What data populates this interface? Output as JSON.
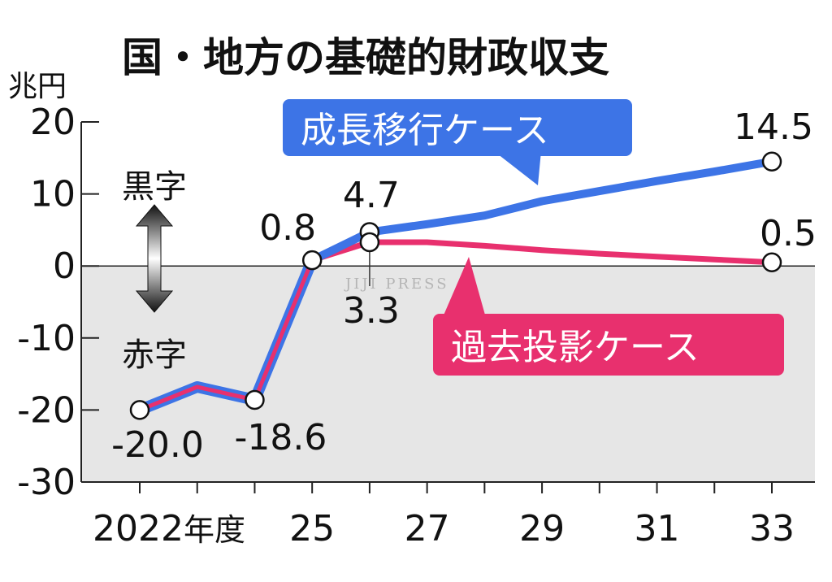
{
  "chart_data": {
    "type": "line",
    "title": "国・地方の基礎的財政収支",
    "ylabel": "兆円",
    "x_values": [
      2022,
      2023,
      2024,
      2025,
      2026,
      2027,
      2028,
      2029,
      2030,
      2031,
      2032,
      2033
    ],
    "x_tick_labels": [
      {
        "x": 2022,
        "label": "2022年度"
      },
      {
        "x": 2025,
        "label": "25"
      },
      {
        "x": 2027,
        "label": "27"
      },
      {
        "x": 2029,
        "label": "29"
      },
      {
        "x": 2031,
        "label": "31"
      },
      {
        "x": 2033,
        "label": "33"
      }
    ],
    "ylim": [
      -30,
      20
    ],
    "y_ticks": [
      20,
      10,
      0,
      -10,
      -20,
      -30
    ],
    "surplus_label": "黒字",
    "deficit_label": "赤字",
    "watermark": "JIJI PRESS",
    "series": [
      {
        "name": "成長移行ケース",
        "color": "#3d74e6",
        "points": [
          [
            2022,
            -20.0
          ],
          [
            2023,
            -16.8
          ],
          [
            2024,
            -18.6
          ],
          [
            2025,
            0.8
          ],
          [
            2026,
            4.7
          ],
          [
            2027,
            5.8
          ],
          [
            2028,
            7.0
          ],
          [
            2029,
            9.0
          ],
          [
            2030,
            10.4
          ],
          [
            2031,
            11.8
          ],
          [
            2032,
            13.1
          ],
          [
            2033,
            14.5
          ]
        ],
        "labels": [
          {
            "x": 2026,
            "text": "4.7"
          },
          {
            "x": 2033,
            "text": "14.5"
          }
        ]
      },
      {
        "name": "過去投影ケース",
        "color": "#e8306e",
        "points": [
          [
            2022,
            -20.0
          ],
          [
            2023,
            -16.8
          ],
          [
            2024,
            -18.6
          ],
          [
            2025,
            0.8
          ],
          [
            2026,
            3.3
          ],
          [
            2027,
            3.3
          ],
          [
            2028,
            2.8
          ],
          [
            2029,
            2.2
          ],
          [
            2030,
            1.7
          ],
          [
            2031,
            1.3
          ],
          [
            2032,
            0.9
          ],
          [
            2033,
            0.5
          ]
        ],
        "labels": [
          {
            "x": 2026,
            "text": "3.3"
          },
          {
            "x": 2033,
            "text": "0.5"
          }
        ]
      }
    ],
    "shared_labels": [
      {
        "x": 2022,
        "text": "-20.0"
      },
      {
        "x": 2024,
        "text": "-18.6"
      },
      {
        "x": 2025,
        "text": "0.8"
      }
    ]
  }
}
